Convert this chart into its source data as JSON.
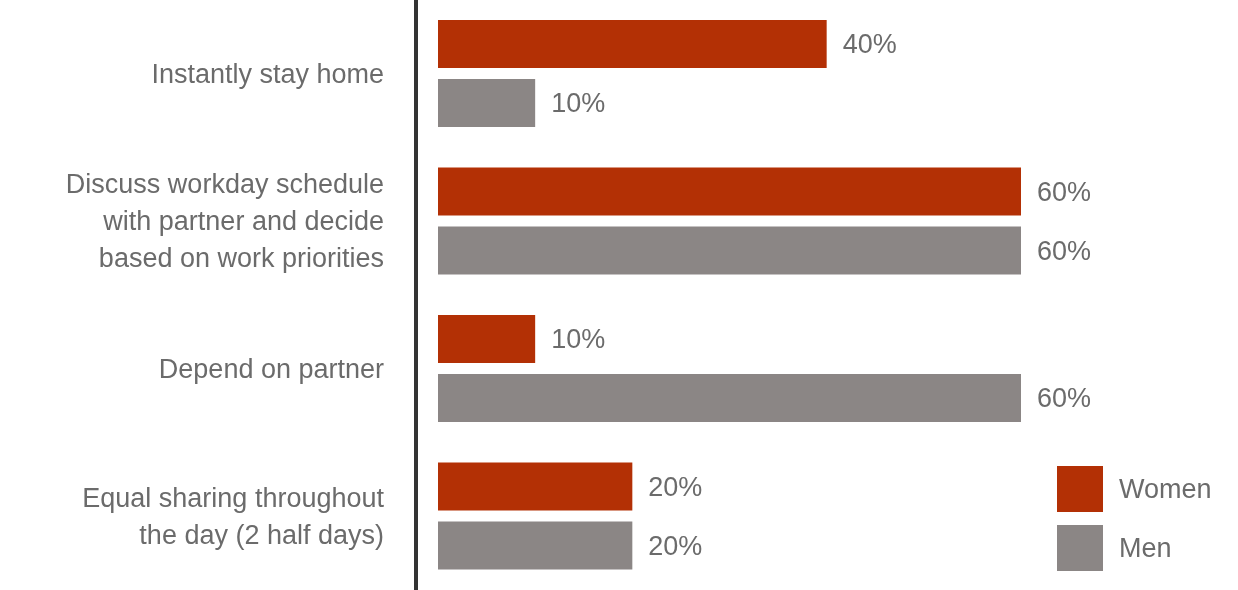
{
  "chart_data": {
    "type": "bar",
    "orientation": "horizontal",
    "categories": [
      "Instantly stay home",
      "Discuss workday schedule with partner and decide based on work priorities",
      "Depend on partner",
      "Equal sharing throughout the day (2 half days)"
    ],
    "series": [
      {
        "name": "Women",
        "color": "#b33005",
        "values": [
          40,
          60,
          10,
          20
        ],
        "value_labels": [
          "40%",
          "60%",
          "10%",
          "20%"
        ]
      },
      {
        "name": "Men",
        "color": "#8b8685",
        "values": [
          10,
          60,
          60,
          20
        ],
        "value_labels": [
          "10%",
          "60%",
          "60%",
          "20%"
        ]
      }
    ],
    "legend": "bottom right"
  }
}
